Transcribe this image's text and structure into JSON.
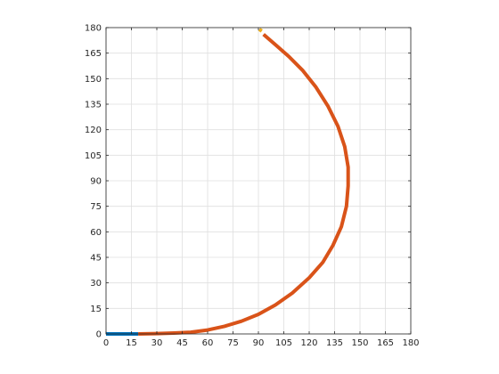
{
  "chart_data": {
    "type": "line",
    "title": "",
    "xlabel": "",
    "ylabel": "",
    "xlim": [
      0,
      180
    ],
    "ylim": [
      0,
      180
    ],
    "grid": true,
    "xticks": [
      0,
      15,
      30,
      45,
      60,
      75,
      90,
      105,
      120,
      135,
      150,
      165,
      180
    ],
    "yticks": [
      0,
      15,
      30,
      45,
      60,
      75,
      90,
      105,
      120,
      135,
      150,
      165,
      180
    ],
    "series": [
      {
        "color": "#0072BD",
        "x": [
          0,
          5,
          10,
          15,
          19
        ],
        "y": [
          0,
          0,
          0,
          0,
          0
        ]
      },
      {
        "color": "#D95319",
        "x": [
          19,
          30,
          40,
          50,
          60,
          70,
          80,
          90,
          100,
          110,
          120,
          128,
          134,
          139,
          142,
          143,
          143,
          141,
          137,
          131,
          124,
          116,
          108,
          100,
          93
        ],
        "y": [
          0,
          0.2,
          0.5,
          1,
          2.3,
          4.5,
          7.5,
          11.5,
          17,
          24,
          33,
          42,
          52,
          63,
          75,
          87,
          98,
          110,
          122,
          134,
          145,
          155,
          163,
          170,
          176
        ]
      },
      {
        "color": "#EDB120",
        "x": [
          90.5,
          92
        ],
        "y": [
          179,
          178
        ]
      }
    ]
  }
}
